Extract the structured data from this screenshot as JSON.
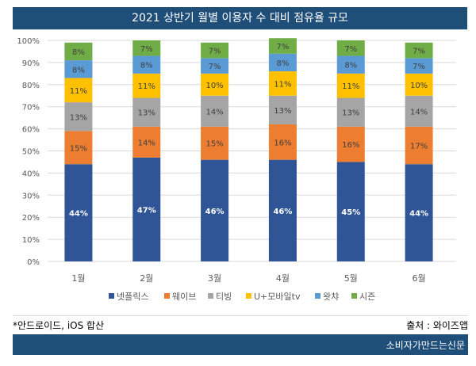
{
  "header": {
    "title": "2021 상반기 월별 이용자 수 대비 점유율 규모"
  },
  "chart_data": {
    "type": "bar",
    "stacked": true,
    "title": "2021 상반기 월별 이용자 수 대비 점유율 규모",
    "xlabel": "",
    "ylabel": "",
    "ylim": [
      0,
      100
    ],
    "grid": true,
    "legend_position": "bottom",
    "categories": [
      "1월",
      "2월",
      "3월",
      "4월",
      "5월",
      "6월"
    ],
    "yticks": [
      "0%",
      "10%",
      "20%",
      "30%",
      "40%",
      "50%",
      "60%",
      "70%",
      "80%",
      "90%",
      "100%"
    ],
    "series": [
      {
        "name": "넷플릭스",
        "color": "#2f5597",
        "label_color": "#ffffff",
        "values": [
          44,
          47,
          46,
          46,
          45,
          44
        ]
      },
      {
        "name": "웨이브",
        "color": "#ed7d31",
        "label_color": "#404040",
        "values": [
          15,
          14,
          15,
          16,
          16,
          17
        ]
      },
      {
        "name": "티빙",
        "color": "#a5a5a5",
        "label_color": "#404040",
        "values": [
          13,
          13,
          14,
          13,
          13,
          14
        ]
      },
      {
        "name": "U+모바일tv",
        "color": "#ffc000",
        "label_color": "#404040",
        "values": [
          11,
          11,
          10,
          11,
          11,
          10
        ]
      },
      {
        "name": "왓챠",
        "color": "#5b9bd5",
        "label_color": "#404040",
        "values": [
          8,
          8,
          7,
          8,
          8,
          7
        ]
      },
      {
        "name": "시즌",
        "color": "#70ad47",
        "label_color": "#404040",
        "values": [
          8,
          7,
          7,
          7,
          7,
          7
        ]
      }
    ]
  },
  "notes": {
    "left": "*안드로이드, iOS 합산",
    "right": "출처 : 와이즈앱"
  },
  "footer": {
    "brand": "소비자가만드는신문"
  }
}
